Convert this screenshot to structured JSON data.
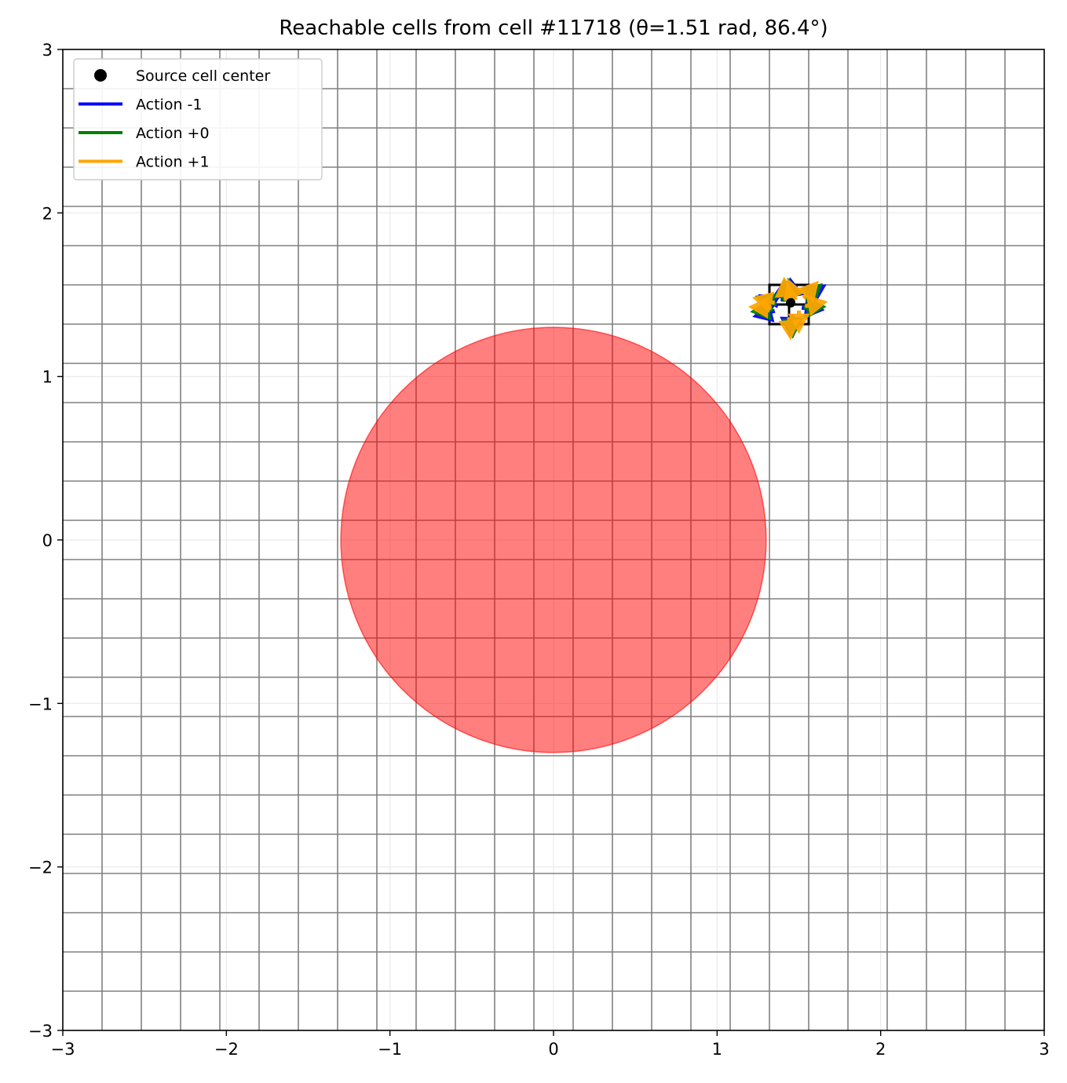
{
  "chart_data": {
    "type": "scatter",
    "title": "Reachable cells from cell #11718 (θ=1.51 rad, 86.4°)",
    "xlabel": "",
    "ylabel": "",
    "xlim": [
      -3,
      3
    ],
    "ylim": [
      -3,
      3
    ],
    "x_ticks": [
      -3,
      -2,
      -1,
      0,
      1,
      2,
      3
    ],
    "y_ticks": [
      -3,
      -2,
      -1,
      0,
      1,
      2,
      3
    ],
    "x_tick_labels": [
      "−3",
      "−2",
      "−1",
      "0",
      "1",
      "2",
      "3"
    ],
    "y_tick_labels": [
      "−3",
      "−2",
      "−1",
      "0",
      "1",
      "2",
      "3"
    ],
    "grid": true,
    "cell_grid": {
      "x_edges": [
        -2.76,
        -2.52,
        -2.28,
        -2.04,
        -1.8,
        -1.56,
        -1.32,
        -1.08,
        -0.84,
        -0.6,
        -0.36,
        -0.12,
        0.12,
        0.36,
        0.6,
        0.84,
        1.08,
        1.32,
        1.56,
        1.8,
        2.04,
        2.28,
        2.52,
        2.76
      ],
      "y_edges": [
        -2.76,
        -2.52,
        -2.28,
        -2.04,
        -1.8,
        -1.56,
        -1.32,
        -1.08,
        -0.84,
        -0.6,
        -0.36,
        -0.12,
        0.12,
        0.36,
        0.6,
        0.84,
        1.08,
        1.32,
        1.56,
        1.8,
        2.04,
        2.28,
        2.52,
        2.76
      ],
      "color": "#808080"
    },
    "obstacle": {
      "center": [
        0,
        0
      ],
      "radius": 1.3,
      "color": "#ff0000",
      "alpha": 0.5
    },
    "source": {
      "x": 1.45,
      "y": 1.45,
      "color": "#000000"
    },
    "legend": {
      "location": "upper left",
      "entries": [
        {
          "label": "Source cell center",
          "kind": "marker",
          "color": "#000000"
        },
        {
          "label": "Action -1",
          "kind": "line",
          "color": "#0000ff"
        },
        {
          "label": "Action +0",
          "kind": "line",
          "color": "#008000"
        },
        {
          "label": "Action +1",
          "kind": "line",
          "color": "#ffa500"
        }
      ]
    },
    "series": [
      {
        "action": -1,
        "color": "#0000ff",
        "arrows": [
          {
            "x": 1.37,
            "y": 1.43,
            "angle": 2.6
          },
          {
            "x": 1.4,
            "y": 1.46,
            "angle": 1.45
          },
          {
            "x": 1.47,
            "y": 1.47,
            "angle": 1.75
          },
          {
            "x": 1.55,
            "y": 1.49,
            "angle": 0.55
          },
          {
            "x": 1.35,
            "y": 1.4,
            "angle": 3.4
          },
          {
            "x": 1.52,
            "y": 1.42,
            "angle": -0.1
          },
          {
            "x": 1.45,
            "y": 1.38,
            "angle": -1.6
          }
        ]
      },
      {
        "action": 0,
        "color": "#008000",
        "arrows": [
          {
            "x": 1.36,
            "y": 1.44,
            "angle": 2.75
          },
          {
            "x": 1.41,
            "y": 1.46,
            "angle": 1.55
          },
          {
            "x": 1.47,
            "y": 1.47,
            "angle": 1.85
          },
          {
            "x": 1.54,
            "y": 1.48,
            "angle": 0.7
          },
          {
            "x": 1.34,
            "y": 1.41,
            "angle": 3.25
          },
          {
            "x": 1.53,
            "y": 1.42,
            "angle": 0.05
          },
          {
            "x": 1.46,
            "y": 1.37,
            "angle": -1.55
          }
        ]
      },
      {
        "action": 1,
        "color": "#ffa500",
        "arrows": [
          {
            "x": 1.35,
            "y": 1.45,
            "angle": 2.9
          },
          {
            "x": 1.42,
            "y": 1.47,
            "angle": 1.65
          },
          {
            "x": 1.48,
            "y": 1.47,
            "angle": 1.95
          },
          {
            "x": 1.53,
            "y": 1.48,
            "angle": 0.85
          },
          {
            "x": 1.33,
            "y": 1.42,
            "angle": 3.1
          },
          {
            "x": 1.54,
            "y": 1.43,
            "angle": 0.2
          },
          {
            "x": 1.44,
            "y": 1.36,
            "angle": -1.5
          },
          {
            "x": 1.5,
            "y": 1.4,
            "angle": -1.57
          }
        ]
      }
    ]
  }
}
